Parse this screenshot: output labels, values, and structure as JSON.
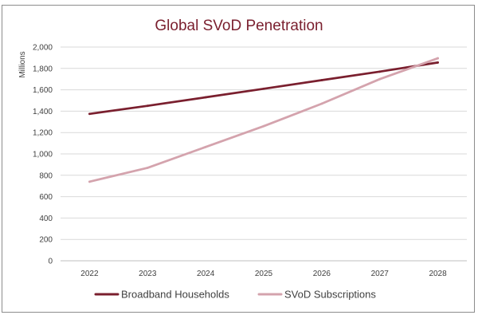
{
  "chart_data": {
    "type": "line",
    "title": "Global SVoD Penetration",
    "ylabel": "Millions",
    "xlabel": "",
    "categories": [
      "2022",
      "2023",
      "2024",
      "2025",
      "2026",
      "2027",
      "2028"
    ],
    "yticks": [
      "0",
      "200",
      "400",
      "600",
      "800",
      "1,000",
      "1,200",
      "1,400",
      "1,600",
      "1,800",
      "2,000"
    ],
    "ylim": [
      0,
      2000
    ],
    "grid": true,
    "legend_position": "bottom",
    "series": [
      {
        "name": "Broadband Households",
        "color": "#7a1f2e",
        "values": [
          1375,
          1450,
          1530,
          1610,
          1690,
          1770,
          1855
        ]
      },
      {
        "name": "SVoD Subscriptions",
        "color": "#d4a3ad",
        "values": [
          740,
          870,
          1065,
          1260,
          1470,
          1700,
          1895
        ]
      }
    ]
  }
}
